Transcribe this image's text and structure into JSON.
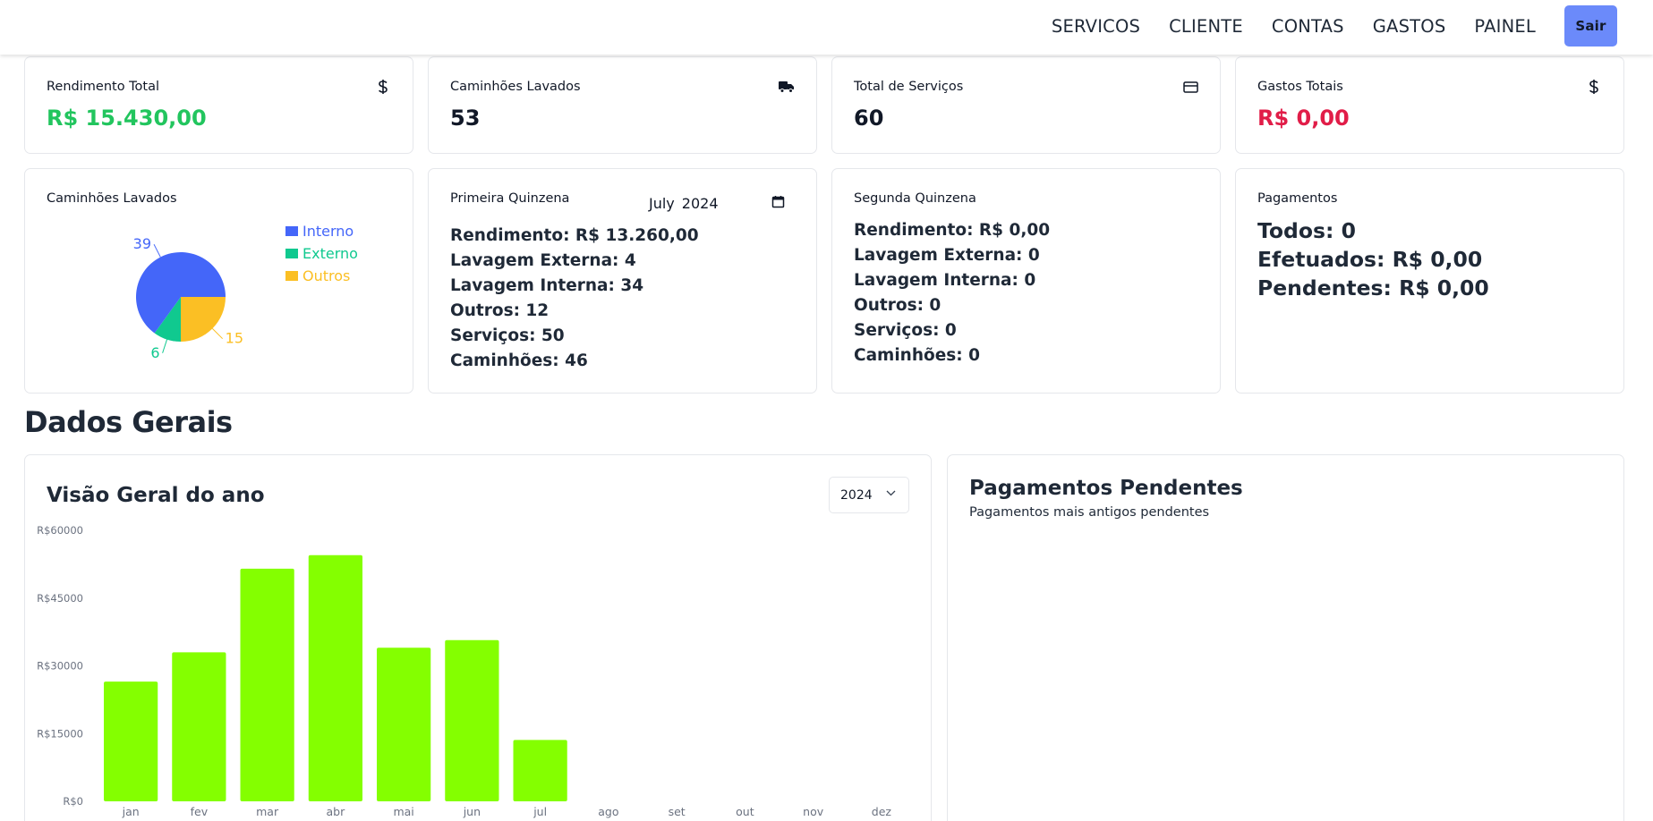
{
  "nav": {
    "items": [
      "SERVICOS",
      "CLIENTE",
      "CONTAS",
      "GASTOS",
      "PAINEL"
    ],
    "logout_label": "Sair"
  },
  "stats": [
    {
      "label": "Rendimento Total",
      "value": "R$ 15.430,00",
      "color": "#22c55e",
      "icon": "dollar-icon"
    },
    {
      "label": "Caminhões Lavados",
      "value": "53",
      "color": "#1f2937",
      "icon": "truck-icon"
    },
    {
      "label": "Total de Serviços",
      "value": "60",
      "color": "#1f2937",
      "icon": "credit-card-icon"
    },
    {
      "label": "Gastos Totais",
      "value": "R$ 0,00",
      "color": "#e11d48",
      "icon": "dollar-icon"
    }
  ],
  "pie_card": {
    "title": "Caminhões Lavados",
    "legend": [
      {
        "label": "Interno",
        "color": "#4466f9"
      },
      {
        "label": "Externo",
        "color": "#10c98f"
      },
      {
        "label": "Outros",
        "color": "#fbbf24"
      }
    ]
  },
  "primeira": {
    "title": "Primeira Quinzena",
    "date_month": "July",
    "date_year": "2024",
    "lines": [
      "Rendimento: R$ 13.260,00",
      "Lavagem Externa: 4",
      "Lavagem Interna: 34",
      "Outros: 12",
      "Serviços: 50",
      "Caminhões: 46"
    ]
  },
  "segunda": {
    "title": "Segunda Quinzena",
    "lines": [
      "Rendimento: R$ 0,00",
      "Lavagem Externa: 0",
      "Lavagem Interna: 0",
      "Outros: 0",
      "Serviços: 0",
      "Caminhões: 0"
    ]
  },
  "pagamentos": {
    "title": "Pagamentos",
    "lines": [
      "Todos: 0",
      "Efetuados: R$ 0,00",
      "Pendentes: R$ 0,00"
    ]
  },
  "section_title": "Dados Gerais",
  "overview": {
    "title": "Visão Geral do ano",
    "year": "2024"
  },
  "pending": {
    "title": "Pagamentos Pendentes",
    "subtitle": "Pagamentos mais antigos pendentes"
  },
  "colors": {
    "bar": "#84ff00",
    "accent": "#6b8afa"
  },
  "chart_data": [
    {
      "type": "pie",
      "categories": [
        "Interno",
        "Externo",
        "Outros"
      ],
      "values": [
        39,
        6,
        15
      ],
      "colors": [
        "#4466f9",
        "#10c98f",
        "#fbbf24"
      ],
      "legend": "right"
    },
    {
      "type": "bar",
      "categories": [
        "jan",
        "fev",
        "mar",
        "abr",
        "mai",
        "jun",
        "jul",
        "ago",
        "set",
        "out",
        "nov",
        "dez"
      ],
      "values": [
        26500,
        33000,
        51500,
        54500,
        34000,
        35700,
        13600,
        0,
        0,
        0,
        0,
        0
      ],
      "yticks": [
        "R$0",
        "R$15000",
        "R$30000",
        "R$45000",
        "R$60000"
      ],
      "ylim": [
        0,
        60000
      ],
      "color": "#84ff00",
      "grid": false
    }
  ]
}
